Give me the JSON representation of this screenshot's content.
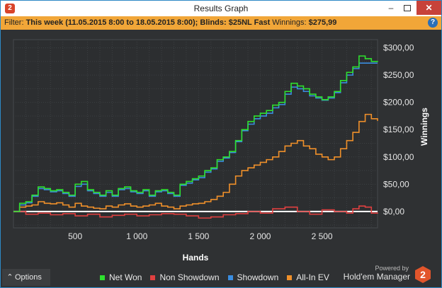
{
  "window": {
    "title": "Results Graph",
    "app_icon": "hm2-logo-icon",
    "buttons": {
      "minimize": "–",
      "close": "✕"
    }
  },
  "filter": {
    "label": "Filter:",
    "period": "This week (11.05.2015 8:00 to 18.05.2015 8:00);",
    "blinds_label": "Blinds:",
    "blinds_value": "$25NL Fast",
    "winnings_label": "Winnings:",
    "winnings_value": "$275,99",
    "help": "?"
  },
  "bottom": {
    "options_label": "Options",
    "powered_by": "Powered by",
    "brand": "Hold'em Manager",
    "brand_logo": "2"
  },
  "colors": {
    "net_won": "#2ee02e",
    "non_showdown": "#e04040",
    "showdown": "#3a8de0",
    "all_in_ev": "#f0902a",
    "background": "#2f3133",
    "zero_line": "#ffffff",
    "grid": "#3d4043"
  },
  "chart_data": {
    "type": "line",
    "xlabel": "Hands",
    "ylabel": "Winnings",
    "xlim": [
      0,
      2950
    ],
    "ylim": [
      -30,
      315
    ],
    "x_ticks": [
      500,
      1000,
      1500,
      2000,
      2500
    ],
    "x_tick_labels": [
      "500",
      "1 000",
      "1 500",
      "2 000",
      "2 500"
    ],
    "y_ticks": [
      0,
      50,
      100,
      150,
      200,
      250,
      300
    ],
    "y_tick_labels": [
      "$0,00",
      "$50,00",
      "$100,00",
      "$150,00",
      "$200,00",
      "$250,00",
      "$300,00"
    ],
    "grid": true,
    "legend_position": "bottom",
    "series": [
      {
        "name": "Net Won",
        "color_key": "net_won",
        "x": [
          0,
          50,
          100,
          150,
          200,
          250,
          300,
          350,
          400,
          450,
          500,
          550,
          600,
          650,
          700,
          750,
          800,
          850,
          900,
          950,
          1000,
          1050,
          1100,
          1150,
          1200,
          1250,
          1300,
          1350,
          1400,
          1450,
          1500,
          1550,
          1600,
          1650,
          1700,
          1750,
          1800,
          1850,
          1900,
          1950,
          2000,
          2050,
          2100,
          2150,
          2200,
          2250,
          2300,
          2350,
          2400,
          2450,
          2500,
          2550,
          2600,
          2650,
          2700,
          2750,
          2800,
          2850,
          2900,
          2950
        ],
        "y": [
          0,
          15,
          18,
          30,
          45,
          42,
          38,
          40,
          35,
          30,
          50,
          55,
          40,
          35,
          30,
          38,
          30,
          42,
          45,
          38,
          35,
          40,
          30,
          38,
          40,
          35,
          30,
          50,
          55,
          60,
          65,
          75,
          80,
          95,
          100,
          110,
          130,
          150,
          165,
          175,
          180,
          185,
          195,
          200,
          220,
          235,
          230,
          225,
          215,
          210,
          205,
          210,
          220,
          240,
          255,
          265,
          285,
          280,
          275,
          276
        ]
      },
      {
        "name": "Non Showdown",
        "color_key": "non_showdown",
        "x": [
          0,
          100,
          200,
          300,
          400,
          500,
          600,
          700,
          800,
          900,
          1000,
          1100,
          1200,
          1300,
          1400,
          1500,
          1600,
          1700,
          1800,
          1900,
          2000,
          2100,
          2200,
          2300,
          2400,
          2500,
          2600,
          2700,
          2750,
          2800,
          2850,
          2900,
          2950
        ],
        "y": [
          0,
          -5,
          -3,
          -6,
          -4,
          -8,
          -5,
          -10,
          -7,
          -5,
          -8,
          -6,
          -4,
          -5,
          -8,
          -12,
          -10,
          -6,
          -4,
          0,
          -3,
          5,
          8,
          0,
          -5,
          3,
          0,
          -3,
          5,
          10,
          8,
          -3,
          -2
        ]
      },
      {
        "name": "Showdown",
        "color_key": "showdown",
        "x": [
          0,
          50,
          100,
          150,
          200,
          250,
          300,
          350,
          400,
          450,
          500,
          550,
          600,
          650,
          700,
          750,
          800,
          850,
          900,
          950,
          1000,
          1050,
          1100,
          1150,
          1200,
          1250,
          1300,
          1350,
          1400,
          1450,
          1500,
          1550,
          1600,
          1650,
          1700,
          1750,
          1800,
          1850,
          1900,
          1950,
          2000,
          2050,
          2100,
          2150,
          2200,
          2250,
          2300,
          2350,
          2400,
          2450,
          2500,
          2550,
          2600,
          2650,
          2700,
          2750,
          2800,
          2850,
          2900,
          2950
        ],
        "y": [
          0,
          12,
          16,
          28,
          42,
          40,
          36,
          38,
          33,
          28,
          46,
          50,
          38,
          33,
          28,
          35,
          28,
          40,
          42,
          36,
          33,
          38,
          28,
          36,
          38,
          33,
          28,
          48,
          52,
          58,
          62,
          72,
          78,
          92,
          98,
          108,
          128,
          148,
          160,
          170,
          175,
          180,
          190,
          196,
          215,
          228,
          225,
          220,
          212,
          208,
          204,
          208,
          218,
          236,
          250,
          262,
          272,
          272,
          272,
          272
        ]
      },
      {
        "name": "All-In EV",
        "color_key": "all_in_ev",
        "x": [
          0,
          50,
          100,
          150,
          200,
          250,
          300,
          350,
          400,
          450,
          500,
          550,
          600,
          650,
          700,
          750,
          800,
          850,
          900,
          950,
          1000,
          1050,
          1100,
          1150,
          1200,
          1250,
          1300,
          1350,
          1400,
          1450,
          1500,
          1550,
          1600,
          1650,
          1700,
          1750,
          1800,
          1850,
          1900,
          1950,
          2000,
          2050,
          2100,
          2150,
          2200,
          2250,
          2300,
          2350,
          2400,
          2450,
          2500,
          2550,
          2600,
          2650,
          2700,
          2750,
          2800,
          2850,
          2900,
          2950
        ],
        "y": [
          0,
          8,
          10,
          12,
          18,
          15,
          14,
          16,
          12,
          8,
          15,
          10,
          8,
          6,
          5,
          10,
          8,
          12,
          14,
          10,
          8,
          10,
          12,
          15,
          10,
          8,
          5,
          10,
          12,
          14,
          15,
          18,
          22,
          28,
          35,
          50,
          65,
          75,
          80,
          85,
          90,
          95,
          100,
          110,
          120,
          125,
          130,
          120,
          115,
          105,
          100,
          95,
          100,
          115,
          130,
          145,
          165,
          178,
          170,
          166
        ]
      }
    ]
  }
}
